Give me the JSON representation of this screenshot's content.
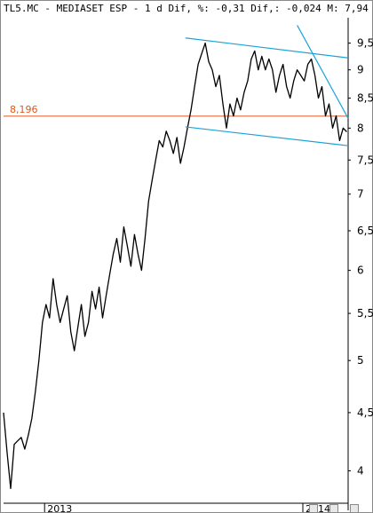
{
  "header": {
    "ticker": "TL5.MC",
    "name": "MEDIASET ESP",
    "interval": "1 d",
    "dif_pct_label": "Dif, %:",
    "dif_pct": "-0,31",
    "dif_label": "Dif,:",
    "dif": "-0,024",
    "m_label": "M:",
    "m": "7,94"
  },
  "icons": [
    "zoom-icon",
    "fit-icon",
    "close-icon"
  ],
  "chart_data": {
    "type": "line",
    "title": "TL5.MC - MEDIASET ESP - 1 d",
    "xlabel": "",
    "ylabel": "",
    "yscale": "log",
    "ylim": [
      3.76,
      10.0
    ],
    "y_ticks": [
      {
        "value": 4,
        "label": "4"
      },
      {
        "value": 4.5,
        "label": "4,5"
      },
      {
        "value": 5,
        "label": "5"
      },
      {
        "value": 5.5,
        "label": "5,5"
      },
      {
        "value": 6,
        "label": "6"
      },
      {
        "value": 6.5,
        "label": "6,5"
      },
      {
        "value": 7,
        "label": "7"
      },
      {
        "value": 7.5,
        "label": "7,5"
      },
      {
        "value": 8,
        "label": "8"
      },
      {
        "value": 8.5,
        "label": "8,5"
      },
      {
        "value": 9,
        "label": "9"
      },
      {
        "value": 9.5,
        "label": "9,5"
      }
    ],
    "x_ticks": [
      {
        "value": "2013-01-02",
        "label": "2013"
      },
      {
        "value": "2014-01-02",
        "label": "2014"
      }
    ],
    "xlim": [
      "2012-11-05",
      "2014-03-07"
    ],
    "series": [
      {
        "name": "",
        "points": [
          [
            "2012-11-05",
            4.5
          ],
          [
            "2012-11-10",
            4.15
          ],
          [
            "2012-11-15",
            3.86
          ],
          [
            "2012-11-20",
            4.22
          ],
          [
            "2012-11-25",
            4.25
          ],
          [
            "2012-11-30",
            4.28
          ],
          [
            "2012-12-05",
            4.18
          ],
          [
            "2012-12-10",
            4.3
          ],
          [
            "2012-12-15",
            4.45
          ],
          [
            "2012-12-20",
            4.7
          ],
          [
            "2012-12-25",
            5.0
          ],
          [
            "2012-12-30",
            5.4
          ],
          [
            "2013-01-04",
            5.6
          ],
          [
            "2013-01-09",
            5.45
          ],
          [
            "2013-01-14",
            5.9
          ],
          [
            "2013-01-19",
            5.6
          ],
          [
            "2013-01-24",
            5.4
          ],
          [
            "2013-01-29",
            5.55
          ],
          [
            "2013-02-03",
            5.7
          ],
          [
            "2013-02-08",
            5.3
          ],
          [
            "2013-02-13",
            5.1
          ],
          [
            "2013-02-18",
            5.35
          ],
          [
            "2013-02-23",
            5.6
          ],
          [
            "2013-02-28",
            5.25
          ],
          [
            "2013-03-05",
            5.4
          ],
          [
            "2013-03-10",
            5.75
          ],
          [
            "2013-03-15",
            5.55
          ],
          [
            "2013-03-20",
            5.8
          ],
          [
            "2013-03-25",
            5.45
          ],
          [
            "2013-03-30",
            5.7
          ],
          [
            "2013-04-04",
            5.95
          ],
          [
            "2013-04-09",
            6.2
          ],
          [
            "2013-04-14",
            6.4
          ],
          [
            "2013-04-19",
            6.1
          ],
          [
            "2013-04-24",
            6.55
          ],
          [
            "2013-04-29",
            6.3
          ],
          [
            "2013-05-04",
            6.05
          ],
          [
            "2013-05-09",
            6.45
          ],
          [
            "2013-05-14",
            6.2
          ],
          [
            "2013-05-19",
            6.0
          ],
          [
            "2013-05-24",
            6.4
          ],
          [
            "2013-05-29",
            6.9
          ],
          [
            "2013-06-03",
            7.2
          ],
          [
            "2013-06-08",
            7.5
          ],
          [
            "2013-06-13",
            7.8
          ],
          [
            "2013-06-18",
            7.7
          ],
          [
            "2013-06-23",
            7.95
          ],
          [
            "2013-06-28",
            7.8
          ],
          [
            "2013-07-03",
            7.6
          ],
          [
            "2013-07-08",
            7.85
          ],
          [
            "2013-07-13",
            7.45
          ],
          [
            "2013-07-18",
            7.7
          ],
          [
            "2013-07-23",
            8.0
          ],
          [
            "2013-07-28",
            8.3
          ],
          [
            "2013-08-02",
            8.7
          ],
          [
            "2013-08-07",
            9.1
          ],
          [
            "2013-08-12",
            9.3
          ],
          [
            "2013-08-17",
            9.5
          ],
          [
            "2013-08-22",
            9.15
          ],
          [
            "2013-08-27",
            9.0
          ],
          [
            "2013-09-01",
            8.7
          ],
          [
            "2013-09-06",
            8.9
          ],
          [
            "2013-09-11",
            8.4
          ],
          [
            "2013-09-16",
            8.0
          ],
          [
            "2013-09-21",
            8.4
          ],
          [
            "2013-09-26",
            8.2
          ],
          [
            "2013-10-01",
            8.5
          ],
          [
            "2013-10-06",
            8.3
          ],
          [
            "2013-10-11",
            8.6
          ],
          [
            "2013-10-16",
            8.8
          ],
          [
            "2013-10-21",
            9.2
          ],
          [
            "2013-10-26",
            9.35
          ],
          [
            "2013-10-31",
            9.0
          ],
          [
            "2013-11-05",
            9.25
          ],
          [
            "2013-11-10",
            9.0
          ],
          [
            "2013-11-15",
            9.2
          ],
          [
            "2013-11-20",
            9.0
          ],
          [
            "2013-11-25",
            8.6
          ],
          [
            "2013-11-30",
            8.9
          ],
          [
            "2013-12-05",
            9.1
          ],
          [
            "2013-12-10",
            8.7
          ],
          [
            "2013-12-15",
            8.5
          ],
          [
            "2013-12-20",
            8.8
          ],
          [
            "2013-12-25",
            9.0
          ],
          [
            "2013-12-30",
            8.9
          ],
          [
            "2014-01-04",
            8.8
          ],
          [
            "2014-01-09",
            9.1
          ],
          [
            "2014-01-14",
            9.2
          ],
          [
            "2014-01-19",
            8.9
          ],
          [
            "2014-01-24",
            8.5
          ],
          [
            "2014-01-29",
            8.7
          ],
          [
            "2014-02-03",
            8.2
          ],
          [
            "2014-02-08",
            8.4
          ],
          [
            "2014-02-13",
            8.0
          ],
          [
            "2014-02-18",
            8.2
          ],
          [
            "2014-02-23",
            7.8
          ],
          [
            "2014-02-28",
            8.0
          ],
          [
            "2014-03-05",
            7.94
          ]
        ]
      }
    ],
    "horizontal_level": {
      "value": 8.196,
      "label": "8,196"
    },
    "trendlines": [
      {
        "points": [
          [
            "2013-07-20",
            9.6
          ],
          [
            "2014-03-07",
            9.22
          ]
        ]
      },
      {
        "points": [
          [
            "2013-07-20",
            8.02
          ],
          [
            "2014-03-07",
            7.72
          ]
        ]
      },
      {
        "points": [
          [
            "2013-12-25",
            9.85
          ],
          [
            "2014-03-07",
            8.16
          ]
        ]
      }
    ],
    "colors": {
      "price": "#000000",
      "level": "#e0561a",
      "trend": "#1aa3d9",
      "axis": "#000000",
      "frame": "#8a8a8a"
    },
    "grid": false
  }
}
